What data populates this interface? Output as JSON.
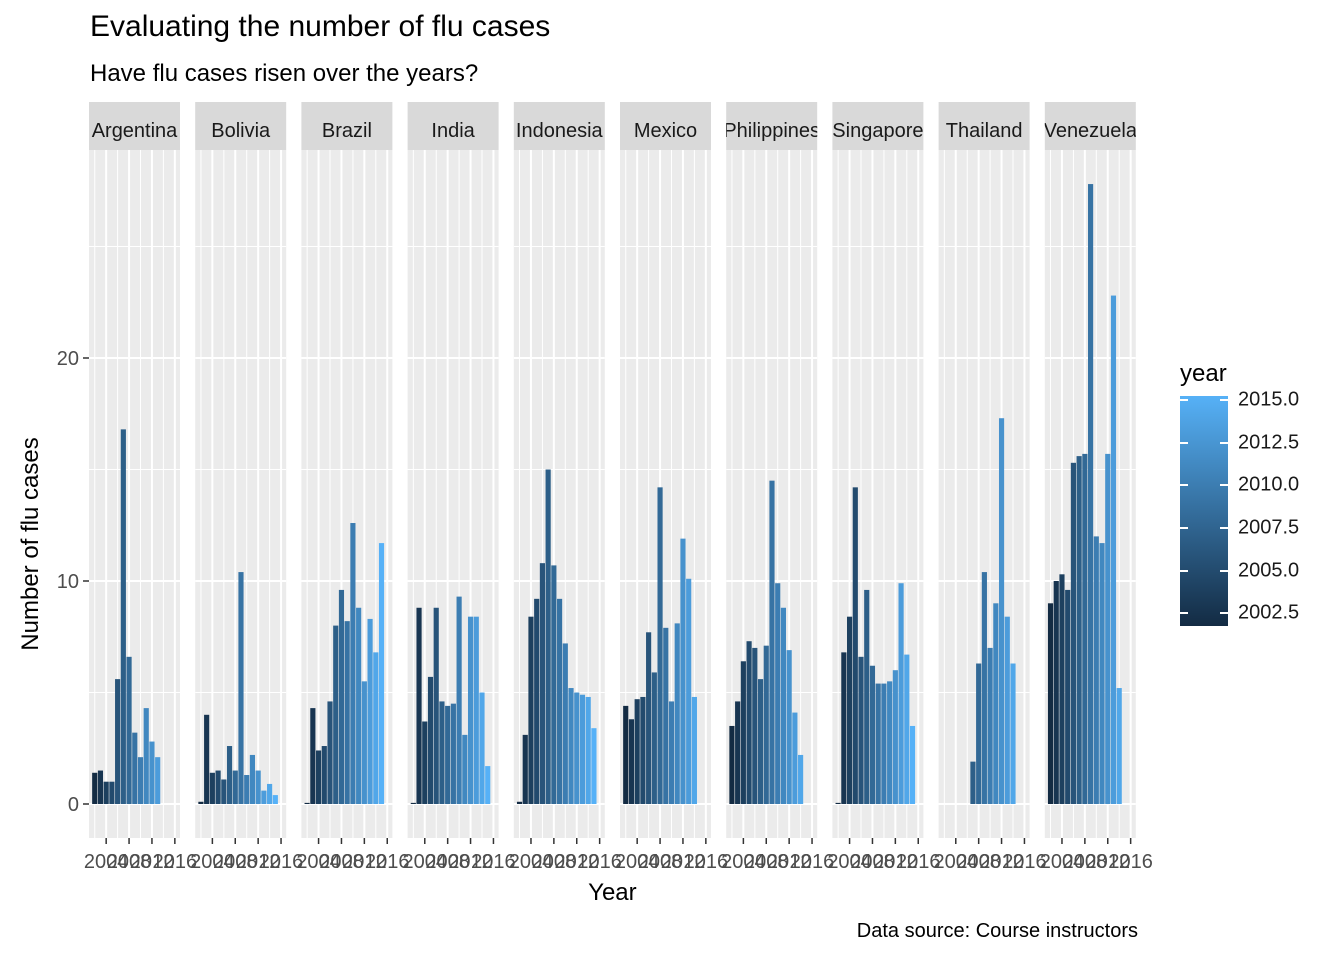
{
  "title": "Evaluating the number of flu cases",
  "subtitle": "Have flu cases risen over the years?",
  "caption": "Data source: Course instructors",
  "colors": {
    "panel_bg": "#ebebeb",
    "grid": "#ffffff",
    "strip_bg": "#d9d9d9",
    "low": "#132b43",
    "high": "#56b1f7"
  },
  "chart_data": {
    "type": "bar",
    "facet": "country",
    "xlabel": "Year",
    "ylabel": "Number of flu cases",
    "xlim": [
      2002,
      2015
    ],
    "ylim": [
      0,
      28
    ],
    "y_ticks": [
      "0",
      "10",
      "20"
    ],
    "y_tick_values": [
      0,
      10,
      20
    ],
    "x_tick_labels": [
      "2004",
      "2008",
      "2012",
      "2016"
    ],
    "x_tick_values": [
      2004,
      2008,
      2012,
      2016
    ],
    "legend": {
      "title": "year",
      "placement": "right",
      "labels": [
        "2015.0",
        "2012.5",
        "2010.0",
        "2007.5",
        "2005.0",
        "2002.5"
      ],
      "values": [
        2015,
        2012.5,
        2010,
        2007.5,
        2005,
        2002.5
      ],
      "range": [
        2002,
        2015
      ]
    },
    "years": [
      2002,
      2003,
      2004,
      2005,
      2006,
      2007,
      2008,
      2009,
      2010,
      2011,
      2012,
      2013,
      2014,
      2015
    ],
    "panels": [
      {
        "name": "Argentina",
        "values": [
          1.4,
          1.5,
          1.0,
          1.0,
          5.6,
          16.8,
          6.6,
          3.2,
          2.1,
          4.3,
          2.8,
          2.1
        ]
      },
      {
        "name": "Bolivia",
        "values": [
          0.1,
          4.0,
          1.4,
          1.5,
          1.1,
          2.6,
          1.5,
          10.4,
          1.3,
          2.2,
          1.5,
          0.6,
          0.9,
          0.4
        ]
      },
      {
        "name": "Brazil",
        "values": [
          0.05,
          4.3,
          2.4,
          2.6,
          4.6,
          8.0,
          9.6,
          8.2,
          12.6,
          8.8,
          5.5,
          8.3,
          6.8,
          11.7
        ]
      },
      {
        "name": "India",
        "values": [
          0.05,
          8.8,
          3.7,
          5.7,
          8.8,
          4.6,
          4.4,
          4.5,
          9.3,
          3.1,
          8.4,
          8.4,
          5.0,
          1.7
        ]
      },
      {
        "name": "Indonesia",
        "values": [
          0.1,
          3.1,
          8.4,
          9.2,
          10.8,
          15.0,
          10.7,
          9.2,
          7.2,
          5.2,
          5.0,
          4.9,
          4.8,
          3.4
        ]
      },
      {
        "name": "Mexico",
        "values": [
          4.4,
          3.8,
          4.7,
          4.8,
          7.7,
          5.9,
          14.2,
          7.9,
          4.6,
          8.1,
          11.9,
          10.1,
          4.8
        ]
      },
      {
        "name": "Philippines",
        "values": [
          3.5,
          4.6,
          6.4,
          7.3,
          7.0,
          5.6,
          7.1,
          14.5,
          9.9,
          8.8,
          6.9,
          4.1,
          2.2
        ]
      },
      {
        "name": "Singapore",
        "values": [
          0.05,
          6.8,
          8.4,
          14.2,
          6.6,
          9.6,
          6.2,
          5.4,
          5.4,
          5.5,
          6.0,
          9.9,
          6.7,
          3.5
        ]
      },
      {
        "name": "Thailand",
        "start_year": 2007,
        "values": [
          1.9,
          6.3,
          10.4,
          7.0,
          9.0,
          17.3,
          8.4,
          6.3
        ]
      },
      {
        "name": "Venezuela",
        "values": [
          9.0,
          10.0,
          10.3,
          9.6,
          15.3,
          15.6,
          15.7,
          27.8,
          12.0,
          11.7,
          15.7,
          22.8,
          5.2
        ]
      }
    ]
  }
}
